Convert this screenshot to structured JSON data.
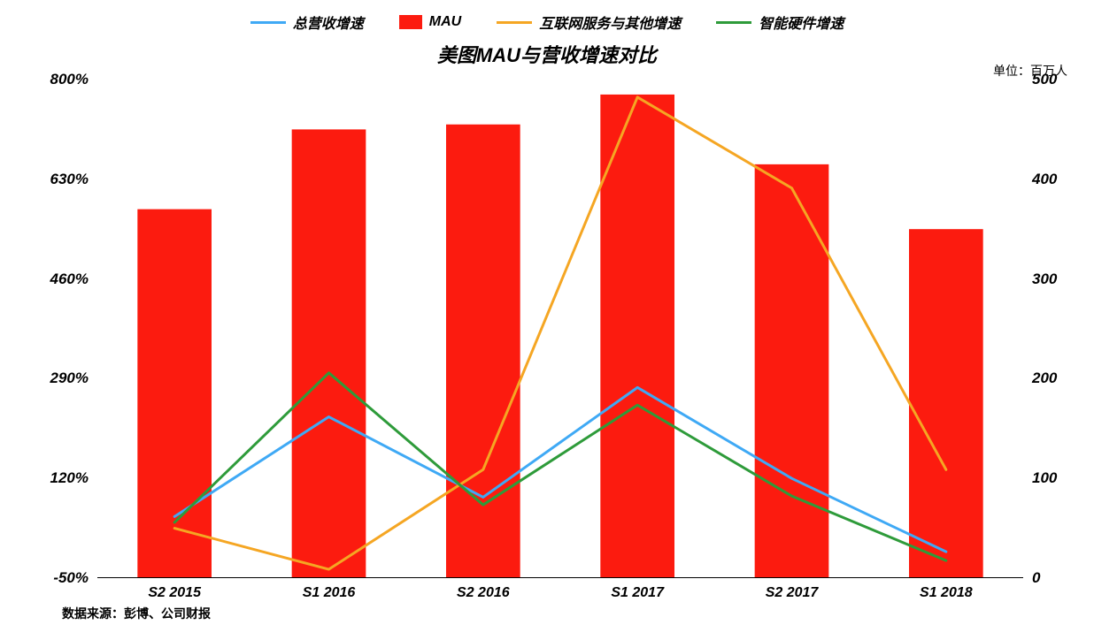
{
  "chart": {
    "title": "美图MAU与营收增速对比",
    "unit_label": "单位：百万人",
    "source_label": "数据来源：彭博、公司财报",
    "categories": [
      "S2 2015",
      "S1 2016",
      "S2 2016",
      "S1 2017",
      "S2 2017",
      "S1 2018"
    ],
    "y_left": {
      "min": -50,
      "max": 800,
      "ticks": [
        -50,
        120,
        290,
        460,
        630,
        800
      ],
      "suffix": "%"
    },
    "y_right": {
      "min": 0,
      "max": 500,
      "ticks": [
        0,
        100,
        200,
        300,
        400,
        500
      ],
      "suffix": ""
    },
    "series": {
      "mau": {
        "label": "MAU",
        "type": "bar",
        "axis": "right",
        "color": "#fc1b0f",
        "values": [
          370,
          450,
          455,
          485,
          415,
          350
        ],
        "bar_width_frac": 0.48
      },
      "total_revenue_growth": {
        "label": "总营收增速",
        "type": "line",
        "axis": "left",
        "color": "#3fa9f5",
        "line_width": 3,
        "values": [
          55,
          225,
          88,
          275,
          120,
          -5
        ]
      },
      "internet_other_growth": {
        "label": "互联网服务与其他增速",
        "type": "line",
        "axis": "left",
        "color": "#f5a623",
        "line_width": 3,
        "values": [
          35,
          -35,
          135,
          770,
          615,
          135
        ]
      },
      "smart_hardware_growth": {
        "label": "智能硬件增速",
        "type": "line",
        "axis": "left",
        "color": "#2e9b3a",
        "line_width": 3,
        "values": [
          45,
          300,
          75,
          245,
          90,
          -20
        ]
      }
    },
    "legend_order": [
      "total_revenue_growth",
      "mau",
      "internet_other_growth",
      "smart_hardware_growth"
    ],
    "background_color": "#ffffff",
    "axis_color": "#000000",
    "title_fontsize": 22,
    "label_fontsize": 16
  }
}
